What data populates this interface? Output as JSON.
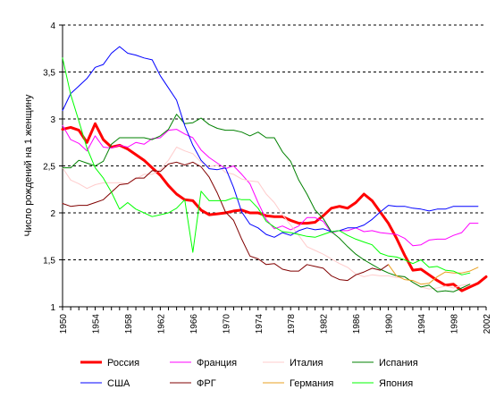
{
  "chart_data": {
    "type": "line",
    "title": "",
    "xlabel": "",
    "ylabel": "Число рождений на 1 женщину",
    "xlim": [
      1950,
      2002
    ],
    "ylim": [
      1,
      4
    ],
    "grid": "horizontal dashed",
    "legend_position": "bottom",
    "y_ticks": [
      "1",
      "1,5",
      "2",
      "2,5",
      "3",
      "3,5",
      "4"
    ],
    "x_ticks": [
      "1950",
      "1954",
      "1958",
      "1962",
      "1966",
      "1970",
      "1974",
      "1978",
      "1982",
      "1986",
      "1990",
      "1994",
      "1998",
      "2002"
    ],
    "series": [
      {
        "name": "Россия",
        "color": "#ff0000",
        "width": 3,
        "x": [
          1950,
          1951,
          1952,
          1953,
          1954,
          1955,
          1956,
          1957,
          1958,
          1959,
          1960,
          1961,
          1962,
          1963,
          1964,
          1965,
          1966,
          1967,
          1968,
          1969,
          1970,
          1971,
          1972,
          1973,
          1974,
          1975,
          1976,
          1977,
          1978,
          1979,
          1980,
          1981,
          1982,
          1983,
          1984,
          1985,
          1986,
          1987,
          1988,
          1989,
          1990,
          1991,
          1992,
          1993,
          1994,
          1995,
          1996,
          1997,
          1998,
          1999,
          2000,
          2001,
          2002
        ],
        "y": [
          2.89,
          2.91,
          2.88,
          2.75,
          2.95,
          2.78,
          2.7,
          2.72,
          2.68,
          2.62,
          2.56,
          2.48,
          2.4,
          2.29,
          2.2,
          2.14,
          2.13,
          2.03,
          1.98,
          1.99,
          2.0,
          2.02,
          2.03,
          2.0,
          2.0,
          1.97,
          1.96,
          1.96,
          1.92,
          1.89,
          1.89,
          1.9,
          1.97,
          2.05,
          2.07,
          2.05,
          2.11,
          2.2,
          2.13,
          2.01,
          1.89,
          1.73,
          1.55,
          1.39,
          1.4,
          1.34,
          1.28,
          1.23,
          1.24,
          1.17,
          1.21,
          1.25,
          1.32
        ]
      },
      {
        "name": "Франция",
        "color": "#ff00ff",
        "width": 1,
        "x": [
          1950,
          1951,
          1952,
          1953,
          1954,
          1955,
          1956,
          1957,
          1958,
          1959,
          1960,
          1961,
          1962,
          1963,
          1964,
          1965,
          1966,
          1967,
          1968,
          1969,
          1970,
          1971,
          1972,
          1973,
          1974,
          1975,
          1976,
          1977,
          1978,
          1979,
          1980,
          1981,
          1982,
          1983,
          1984,
          1985,
          1986,
          1987,
          1988,
          1989,
          1990,
          1991,
          1992,
          1993,
          1994,
          1995,
          1996,
          1997,
          1998,
          1999,
          2000,
          2001
        ],
        "y": [
          2.93,
          2.78,
          2.74,
          2.66,
          2.82,
          2.7,
          2.69,
          2.72,
          2.7,
          2.75,
          2.73,
          2.79,
          2.8,
          2.88,
          2.89,
          2.84,
          2.8,
          2.67,
          2.59,
          2.53,
          2.47,
          2.5,
          2.41,
          2.31,
          2.11,
          1.93,
          1.83,
          1.86,
          1.82,
          1.86,
          1.95,
          1.95,
          1.91,
          1.79,
          1.81,
          1.81,
          1.84,
          1.8,
          1.81,
          1.79,
          1.78,
          1.77,
          1.73,
          1.65,
          1.66,
          1.71,
          1.72,
          1.72,
          1.76,
          1.79,
          1.89,
          1.89
        ]
      },
      {
        "name": "Италия",
        "color": "#ffcccc",
        "width": 1,
        "x": [
          1950,
          1951,
          1952,
          1953,
          1954,
          1955,
          1956,
          1957,
          1958,
          1959,
          1960,
          1961,
          1962,
          1963,
          1964,
          1965,
          1966,
          1967,
          1968,
          1969,
          1970,
          1971,
          1972,
          1973,
          1974,
          1975,
          1976,
          1977,
          1978,
          1979,
          1980,
          1981,
          1982,
          1983,
          1984,
          1985,
          1986,
          1987,
          1988,
          1989,
          1990,
          1991,
          1992,
          1993,
          1994,
          1995,
          1996,
          1997,
          1998,
          1999,
          2000
        ],
        "y": [
          2.48,
          2.35,
          2.31,
          2.26,
          2.3,
          2.32,
          2.32,
          2.32,
          2.31,
          2.36,
          2.41,
          2.41,
          2.46,
          2.56,
          2.7,
          2.66,
          2.63,
          2.54,
          2.49,
          2.51,
          2.43,
          2.41,
          2.36,
          2.34,
          2.33,
          2.2,
          2.11,
          1.98,
          1.87,
          1.76,
          1.64,
          1.6,
          1.56,
          1.51,
          1.46,
          1.42,
          1.35,
          1.32,
          1.34,
          1.33,
          1.33,
          1.31,
          1.32,
          1.26,
          1.21,
          1.19,
          1.2,
          1.22,
          1.2,
          1.23,
          1.24
        ]
      },
      {
        "name": "Испания",
        "color": "#008000",
        "width": 1,
        "x": [
          1950,
          1951,
          1952,
          1953,
          1954,
          1955,
          1956,
          1957,
          1958,
          1959,
          1960,
          1961,
          1962,
          1963,
          1964,
          1965,
          1966,
          1967,
          1968,
          1969,
          1970,
          1971,
          1972,
          1973,
          1974,
          1975,
          1976,
          1977,
          1978,
          1979,
          1980,
          1981,
          1982,
          1983,
          1984,
          1985,
          1986,
          1987,
          1988,
          1989,
          1990,
          1991,
          1992,
          1993,
          1994,
          1995,
          1996,
          1997,
          1998,
          1999,
          2000
        ],
        "y": [
          2.48,
          2.48,
          2.56,
          2.53,
          2.5,
          2.55,
          2.73,
          2.8,
          2.8,
          2.8,
          2.8,
          2.78,
          2.82,
          2.89,
          3.05,
          2.95,
          2.96,
          3.01,
          2.94,
          2.9,
          2.88,
          2.88,
          2.86,
          2.82,
          2.86,
          2.8,
          2.8,
          2.65,
          2.55,
          2.35,
          2.2,
          2.03,
          1.94,
          1.8,
          1.73,
          1.64,
          1.56,
          1.5,
          1.45,
          1.4,
          1.36,
          1.33,
          1.32,
          1.26,
          1.21,
          1.23,
          1.16,
          1.17,
          1.16,
          1.2,
          1.24
        ]
      },
      {
        "name": "США",
        "color": "#0000ff",
        "width": 1,
        "x": [
          1950,
          1951,
          1952,
          1953,
          1954,
          1955,
          1956,
          1957,
          1958,
          1959,
          1960,
          1961,
          1962,
          1963,
          1964,
          1965,
          1966,
          1967,
          1968,
          1969,
          1970,
          1971,
          1972,
          1973,
          1974,
          1975,
          1976,
          1977,
          1978,
          1979,
          1980,
          1981,
          1982,
          1983,
          1984,
          1985,
          1986,
          1987,
          1988,
          1989,
          1990,
          1991,
          1992,
          1993,
          1994,
          1995,
          1996,
          1997,
          1998,
          1999,
          2000,
          2001
        ],
        "y": [
          3.09,
          3.27,
          3.35,
          3.43,
          3.55,
          3.58,
          3.7,
          3.77,
          3.7,
          3.68,
          3.65,
          3.63,
          3.46,
          3.33,
          3.2,
          2.93,
          2.72,
          2.56,
          2.47,
          2.46,
          2.48,
          2.27,
          2.01,
          1.88,
          1.84,
          1.77,
          1.74,
          1.79,
          1.76,
          1.81,
          1.84,
          1.82,
          1.83,
          1.8,
          1.81,
          1.84,
          1.84,
          1.87,
          1.93,
          2.01,
          2.08,
          2.07,
          2.07,
          2.05,
          2.04,
          2.02,
          2.04,
          2.04,
          2.07,
          2.07,
          2.07,
          2.07
        ]
      },
      {
        "name": "ФРГ",
        "color": "#800000",
        "width": 1,
        "x": [
          1950,
          1951,
          1952,
          1953,
          1954,
          1955,
          1956,
          1957,
          1958,
          1959,
          1960,
          1961,
          1962,
          1963,
          1964,
          1965,
          1966,
          1967,
          1968,
          1969,
          1970,
          1971,
          1972,
          1973,
          1974,
          1975,
          1976,
          1977,
          1978,
          1979,
          1980,
          1981,
          1982,
          1983,
          1984,
          1985,
          1986,
          1987,
          1988,
          1989,
          1990
        ],
        "y": [
          2.1,
          2.07,
          2.08,
          2.08,
          2.11,
          2.14,
          2.22,
          2.3,
          2.31,
          2.37,
          2.37,
          2.45,
          2.44,
          2.52,
          2.54,
          2.51,
          2.54,
          2.49,
          2.38,
          2.21,
          2.01,
          1.92,
          1.72,
          1.54,
          1.51,
          1.45,
          1.46,
          1.4,
          1.38,
          1.38,
          1.45,
          1.43,
          1.41,
          1.33,
          1.29,
          1.28,
          1.34,
          1.37,
          1.41,
          1.39,
          1.45
        ]
      },
      {
        "name": "Германия",
        "color": "#e8a020",
        "width": 1,
        "x": [
          1990,
          1991,
          1992,
          1993,
          1994,
          1995,
          1996,
          1997,
          1998,
          1999,
          2000,
          2001
        ],
        "y": [
          1.45,
          1.33,
          1.29,
          1.28,
          1.24,
          1.25,
          1.32,
          1.37,
          1.36,
          1.36,
          1.38,
          1.42
        ]
      },
      {
        "name": "Япония",
        "color": "#00ff00",
        "width": 1,
        "x": [
          1950,
          1951,
          1952,
          1953,
          1954,
          1955,
          1956,
          1957,
          1958,
          1959,
          1960,
          1961,
          1962,
          1963,
          1964,
          1965,
          1966,
          1967,
          1968,
          1969,
          1970,
          1971,
          1972,
          1973,
          1974,
          1975,
          1976,
          1977,
          1978,
          1979,
          1980,
          1981,
          1982,
          1983,
          1984,
          1985,
          1986,
          1987,
          1988,
          1989,
          1990,
          1991,
          1992,
          1993,
          1994,
          1995,
          1996,
          1997,
          1998,
          1999,
          2000
        ],
        "y": [
          3.65,
          3.26,
          2.98,
          2.69,
          2.48,
          2.37,
          2.22,
          2.04,
          2.11,
          2.04,
          2.0,
          1.96,
          1.98,
          2.0,
          2.05,
          2.14,
          1.58,
          2.23,
          2.13,
          2.13,
          2.13,
          2.16,
          2.14,
          2.14,
          2.05,
          1.91,
          1.85,
          1.8,
          1.79,
          1.77,
          1.75,
          1.74,
          1.77,
          1.8,
          1.81,
          1.76,
          1.72,
          1.69,
          1.66,
          1.57,
          1.54,
          1.53,
          1.5,
          1.46,
          1.5,
          1.42,
          1.43,
          1.39,
          1.38,
          1.34,
          1.36
        ]
      }
    ],
    "legend_order": [
      "Россия",
      "Франция",
      "Италия",
      "Испания",
      "США",
      "ФРГ",
      "Германия",
      "Япония"
    ]
  }
}
